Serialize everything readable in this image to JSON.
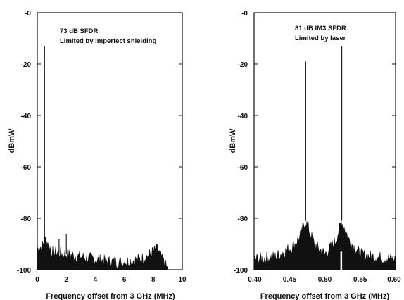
{
  "chart_data": [
    {
      "type": "line",
      "xlabel": "Frequency offset from 3 GHz (MHz)",
      "ylabel": "dBmW",
      "xlim": [
        0,
        10
      ],
      "ylim": [
        -100,
        0
      ],
      "xticks": [
        "0",
        "2",
        "4",
        "6",
        "8",
        "10"
      ],
      "yticks": [
        "-0",
        "-20",
        "-40",
        "-60",
        "-80",
        "-100"
      ],
      "annotations": [
        "73 dB SFDR",
        "Limited by imperfect shielding"
      ],
      "grid": false,
      "peaks": [
        {
          "x": 0.5,
          "y": -13
        },
        {
          "x": 0.5,
          "y": -87
        },
        {
          "x": 1.5,
          "y": -88
        },
        {
          "x": 2.0,
          "y": -86
        }
      ],
      "noise_floor": {
        "x": [
          0,
          0.3,
          0.6,
          1,
          2,
          3,
          4,
          5,
          6,
          7,
          7.5,
          8,
          8.3,
          8.6,
          9
        ],
        "y": [
          -92,
          -91,
          -88,
          -93,
          -94,
          -95,
          -96,
          -97,
          -97,
          -96,
          -95,
          -93,
          -92,
          -96,
          -100
        ]
      }
    },
    {
      "type": "line",
      "xlabel": "Frequency offset from 3 GHz (MHz)",
      "ylabel": "dBmW",
      "xlim": [
        0.4,
        0.6
      ],
      "ylim": [
        -100,
        0
      ],
      "xticks": [
        "0.40",
        "0.45",
        "0.50",
        "0.55",
        "0.60"
      ],
      "yticks": [
        "-0",
        "-20",
        "-40",
        "-60",
        "-80",
        "-100"
      ],
      "annotations": [
        "81 dB IM3 SFDR",
        "Limited by laser"
      ],
      "grid": false,
      "peaks": [
        {
          "x": 0.473,
          "y": -19
        },
        {
          "x": 0.524,
          "y": -13
        }
      ],
      "noise_floor": {
        "x": [
          0.4,
          0.43,
          0.455,
          0.465,
          0.473,
          0.485,
          0.5,
          0.515,
          0.524,
          0.535,
          0.55,
          0.57,
          0.6
        ],
        "y": [
          -96,
          -95,
          -91,
          -87,
          -81,
          -90,
          -94,
          -89,
          -81,
          -89,
          -94,
          -95,
          -96
        ]
      }
    }
  ]
}
